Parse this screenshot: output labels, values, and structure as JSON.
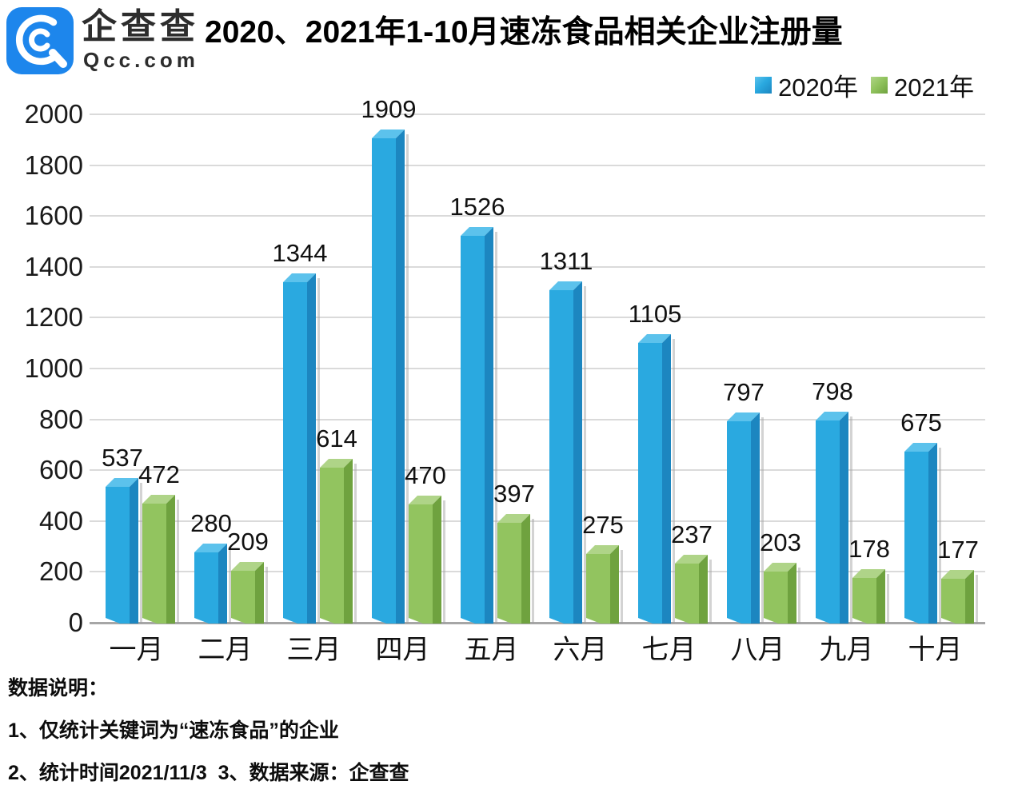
{
  "logo": {
    "name": "企查查",
    "domain": "Qcc.com",
    "brand_color": "#1d86ec"
  },
  "title": "2020、2021年1-10月速冻食品相关企业注册量",
  "chart_data": {
    "type": "bar",
    "title": "2020、2021年1-10月速冻食品相关企业注册量",
    "categories": [
      "一月",
      "二月",
      "三月",
      "四月",
      "五月",
      "六月",
      "七月",
      "八月",
      "九月",
      "十月"
    ],
    "series": [
      {
        "name": "2020年",
        "color": "#2aa9e0",
        "color_side": "#1c86c0",
        "color_top": "#5cc2ec",
        "values": [
          537,
          280,
          1344,
          1909,
          1526,
          1311,
          1105,
          797,
          798,
          675
        ]
      },
      {
        "name": "2021年",
        "color": "#92c45f",
        "color_side": "#6fa23f",
        "color_top": "#afd488",
        "values": [
          472,
          209,
          614,
          470,
          397,
          275,
          237,
          203,
          178,
          177
        ]
      }
    ],
    "xlabel": "",
    "ylabel": "",
    "ylim": [
      0,
      2000
    ],
    "ytick_step": 200,
    "grid": true,
    "gridline_color": "#dadada",
    "axis_color": "#a6a6a6",
    "legend_position": "top-right",
    "data_labels": true
  },
  "footnotes": {
    "heading": "数据说明：",
    "items": [
      "1、仅统计关键词为“速冻食品”的企业",
      "2、统计时间2021/11/3  3、数据来源：企查查"
    ]
  }
}
